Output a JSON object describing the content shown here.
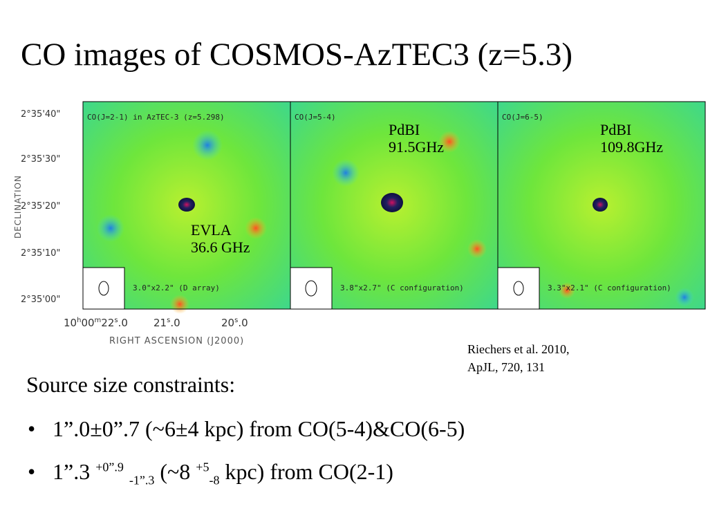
{
  "title": "CO images of COSMOS-AzTEC3 (z=5.3)",
  "panels": [
    {
      "header": "CO(J=2-1) in AzTEC-3 (z=5.298)",
      "beam": "3.0\"x2.2\" (D array)",
      "annotation": [
        "EVLA",
        "36.6 GHz"
      ]
    },
    {
      "header": "CO(J=5-4)",
      "beam": "3.8\"x2.7\" (C configuration)",
      "annotation": [
        "PdBI",
        "91.5GHz"
      ]
    },
    {
      "header": "CO(J=6-5)",
      "beam": "3.3\"x2.1\" (C configuration)",
      "annotation": [
        "PdBI",
        "109.8GHz"
      ]
    }
  ],
  "axes": {
    "y_ticks": [
      "2°35'40\"",
      "2°35'30\"",
      "2°35'20\"",
      "2°35'10\"",
      "2°35'00\""
    ],
    "y_title": "DECLINATION",
    "x_ticks": [
      [
        "10",
        "h",
        "00",
        "m",
        "22",
        "s",
        ".0"
      ],
      [
        "21",
        "s",
        ".0"
      ],
      [
        "20",
        "s",
        ".0"
      ]
    ],
    "x_title": "RIGHT ASCENSION (J2000)"
  },
  "reference": [
    "Riechers et al. 2010,",
    "ApJL, 720, 131"
  ],
  "body": {
    "heading": "Source size constraints:",
    "marker": "•",
    "bullet1": "1”.0±0”.7 (~6±4 kpc) from CO(5-4)&CO(6-5)",
    "bullet2": [
      "1”.3",
      "+0”.9",
      "-1”.3",
      "(~8",
      "+5",
      "-8",
      "kpc) from CO(2-1)"
    ]
  }
}
